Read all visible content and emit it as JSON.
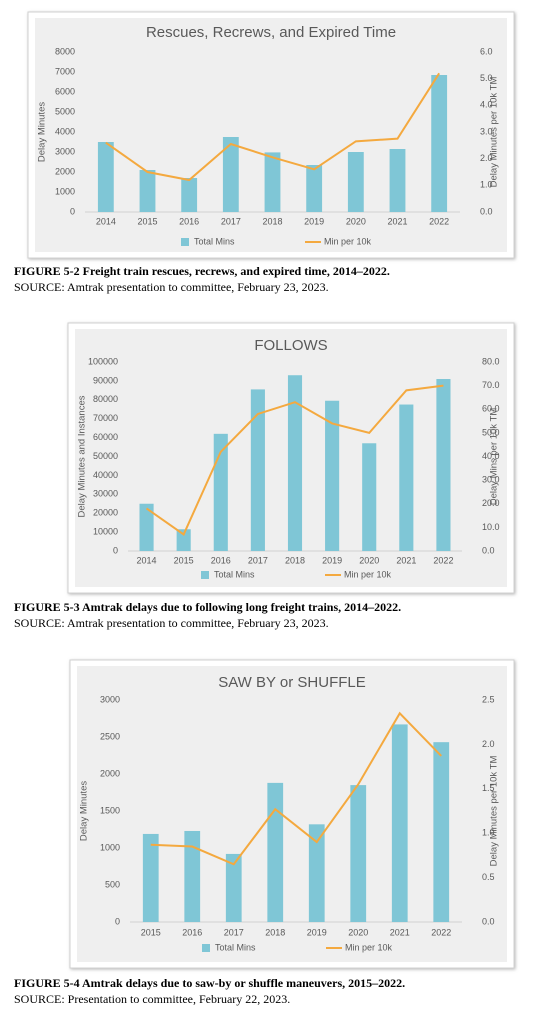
{
  "chart_data": [
    {
      "type": "bar",
      "title": "Rescues, Recrews, and Expired Time",
      "categories": [
        "2014",
        "2015",
        "2016",
        "2017",
        "2018",
        "2019",
        "2020",
        "2021",
        "2022"
      ],
      "series": [
        {
          "name": "Total Mins",
          "color": "#7fc6d6",
          "values": [
            3500,
            2100,
            1700,
            3750,
            2980,
            2350,
            3000,
            3150,
            6850
          ]
        },
        {
          "name": "Min per 10k",
          "type": "line",
          "axis": "y2",
          "color": "#f4a93f",
          "values": [
            2.6,
            1.5,
            1.2,
            2.55,
            2.05,
            1.6,
            2.65,
            2.75,
            5.2
          ]
        }
      ],
      "ylabel": "Delay Minutes",
      "y2label": "Delay Minutes per 10k TM",
      "ylim": [
        0,
        8000
      ],
      "yticks": [
        0,
        1000,
        2000,
        3000,
        4000,
        5000,
        6000,
        7000,
        8000
      ],
      "y2lim": [
        0,
        6
      ],
      "y2ticks": [
        {
          "value": 0,
          "label": "0.0"
        },
        {
          "value": 1,
          "label": "1.0"
        },
        {
          "value": 2,
          "label": "2.0"
        },
        {
          "value": 3,
          "label": "3.0"
        },
        {
          "value": 4,
          "label": "4.0"
        },
        {
          "value": 5,
          "label": "5.0"
        },
        {
          "value": 6,
          "label": "6.0"
        }
      ],
      "grid": false,
      "legend": "bottom",
      "caption": "FIGURE 5-2 Freight train rescues, recrews, and expired time, 2014–2022.",
      "source": "SOURCE: Amtrak presentation to committee, February 23, 2023."
    },
    {
      "type": "bar",
      "title": "FOLLOWS",
      "categories": [
        "2014",
        "2015",
        "2016",
        "2017",
        "2018",
        "2019",
        "2020",
        "2021",
        "2022"
      ],
      "series": [
        {
          "name": "Total Mins",
          "color": "#7fc6d6",
          "values": [
            25000,
            11500,
            62000,
            85500,
            93000,
            79500,
            57000,
            77500,
            91000
          ]
        },
        {
          "name": "Min per 10k",
          "type": "line",
          "axis": "y2",
          "color": "#f4a93f",
          "values": [
            18,
            7,
            42,
            58,
            63,
            54,
            50,
            68,
            70
          ]
        }
      ],
      "ylabel": "Delay Minutes and Instances",
      "y2label": "Delay Mins per 10k TM",
      "ylim": [
        0,
        100000
      ],
      "yticks": [
        0,
        10000,
        20000,
        30000,
        40000,
        50000,
        60000,
        70000,
        80000,
        90000,
        100000
      ],
      "y2lim": [
        0,
        80
      ],
      "y2ticks": [
        {
          "value": 0,
          "label": "0.0"
        },
        {
          "value": 10,
          "label": "10.0"
        },
        {
          "value": 20,
          "label": "20.0"
        },
        {
          "value": 30,
          "label": "30.0"
        },
        {
          "value": 40,
          "label": "40.0"
        },
        {
          "value": 50,
          "label": "50.0"
        },
        {
          "value": 60,
          "label": "60.0"
        },
        {
          "value": 70,
          "label": "70.0"
        },
        {
          "value": 80,
          "label": "80.0"
        }
      ],
      "grid": false,
      "legend": "bottom",
      "caption": "FIGURE 5-3 Amtrak delays due to following long freight trains, 2014–2022.",
      "source": "SOURCE: Amtrak presentation to committee, February 23, 2023."
    },
    {
      "type": "bar",
      "title": "SAW BY or SHUFFLE",
      "categories": [
        "2015",
        "2016",
        "2017",
        "2018",
        "2019",
        "2020",
        "2021",
        "2022"
      ],
      "series": [
        {
          "name": "Total Mins",
          "color": "#7fc6d6",
          "values": [
            1190,
            1230,
            920,
            1880,
            1320,
            1850,
            2670,
            2430
          ]
        },
        {
          "name": "Min per 10k",
          "type": "line",
          "axis": "y2",
          "color": "#f4a93f",
          "values": [
            0.87,
            0.85,
            0.65,
            1.27,
            0.9,
            1.55,
            2.35,
            1.87
          ]
        }
      ],
      "ylabel": "Delay Minutes",
      "y2label": "Delay Minutes per 10k TM",
      "ylim": [
        0,
        3000
      ],
      "yticks": [
        0,
        500,
        1000,
        1500,
        2000,
        2500,
        3000
      ],
      "y2lim": [
        0,
        2.5
      ],
      "y2ticks": [
        {
          "value": 0,
          "label": "0.0"
        },
        {
          "value": 0.5,
          "label": "0.5"
        },
        {
          "value": 1,
          "label": "1.0"
        },
        {
          "value": 1.5,
          "label": "1.5"
        },
        {
          "value": 2,
          "label": "2.0"
        },
        {
          "value": 2.5,
          "label": "2.5"
        }
      ],
      "grid": false,
      "legend": "bottom",
      "caption": "FIGURE 5-4 Amtrak delays due to saw-by or shuffle maneuvers, 2015–2022.",
      "source": "SOURCE: Presentation to committee, February 22, 2023."
    }
  ]
}
